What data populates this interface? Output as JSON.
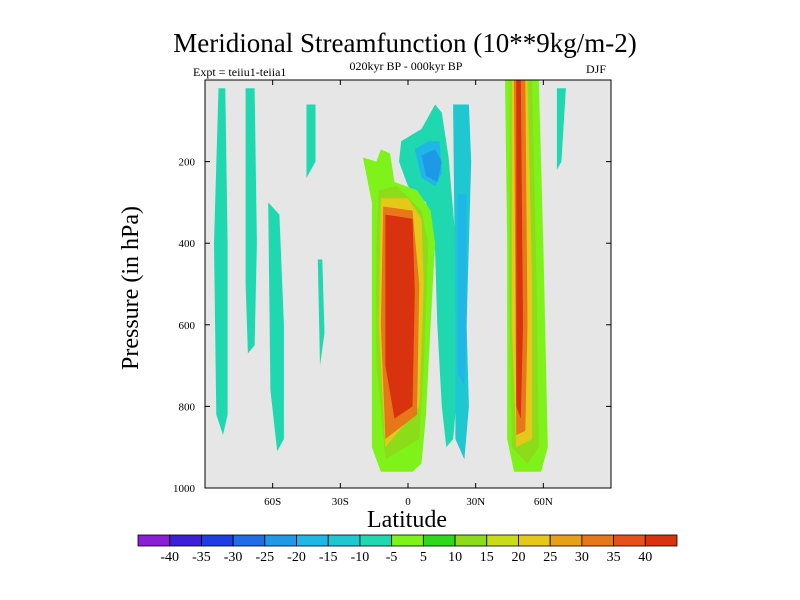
{
  "header": {
    "title": "Meridional Streamfunction (10**9kg/m-2)",
    "subtitle": "020kyr BP - 000kyr BP",
    "expt": "Expt = teiiu1-teiia1",
    "season": "DJF"
  },
  "chart_data": {
    "type": "heatmap",
    "title": "Meridional Streamfunction (10**9kg/m-2)",
    "subtitle": "020kyr BP - 000kyr BP",
    "xlabel": "Latitude",
    "ylabel": "Pressure (in hPa)",
    "xlim": [
      -90,
      90
    ],
    "ylim": [
      1000,
      0
    ],
    "x_ticks": [
      {
        "value": -60,
        "label": "60S"
      },
      {
        "value": -30,
        "label": "30S"
      },
      {
        "value": 0,
        "label": "0"
      },
      {
        "value": 30,
        "label": "30N"
      },
      {
        "value": 60,
        "label": "60N"
      }
    ],
    "y_ticks": [
      {
        "value": 200,
        "label": "200"
      },
      {
        "value": 400,
        "label": "400"
      },
      {
        "value": 600,
        "label": "600"
      },
      {
        "value": 800,
        "label": "800"
      },
      {
        "value": 1000,
        "label": "1000"
      }
    ],
    "background_color": "#e6e6e6",
    "colorbar": {
      "levels": [
        "-40",
        "-35",
        "-30",
        "-25",
        "-20",
        "-15",
        "-10",
        "-5",
        "5",
        "10",
        "15",
        "20",
        "25",
        "30",
        "35",
        "40"
      ],
      "colors": [
        "#8a1fd6",
        "#3d1fd6",
        "#1f3de0",
        "#1f6ee6",
        "#1f98e6",
        "#1fb8e6",
        "#1fc8d0",
        "#1fd8b0",
        "#7ff21a",
        "#2ed81a",
        "#8cdc1a",
        "#c8dc1a",
        "#e6c81a",
        "#e6a01a",
        "#e6781a",
        "#e6501a",
        "#d8320f"
      ]
    },
    "features": [
      {
        "name": "ascending-cell-equatorial-max",
        "value": 40,
        "color": "#d8320f",
        "outline": [
          [
            -11,
            290
          ],
          [
            2,
            310
          ],
          [
            4,
            500
          ],
          [
            4,
            820
          ],
          [
            0,
            900
          ],
          [
            -10,
            900
          ],
          [
            -12,
            700
          ]
        ]
      },
      {
        "name": "midlatitude-positive-max",
        "value": 40,
        "color": "#d8320f",
        "outline": [
          [
            47,
            0
          ],
          [
            51,
            0
          ],
          [
            52,
            400
          ],
          [
            53,
            900
          ],
          [
            49,
            950
          ],
          [
            47,
            900
          ]
        ]
      },
      {
        "name": "tropical-upper-negative",
        "value": -20,
        "color": "#1f98e6",
        "outline": [
          [
            5,
            160
          ],
          [
            15,
            170
          ],
          [
            16,
            260
          ],
          [
            8,
            250
          ]
        ]
      }
    ]
  }
}
